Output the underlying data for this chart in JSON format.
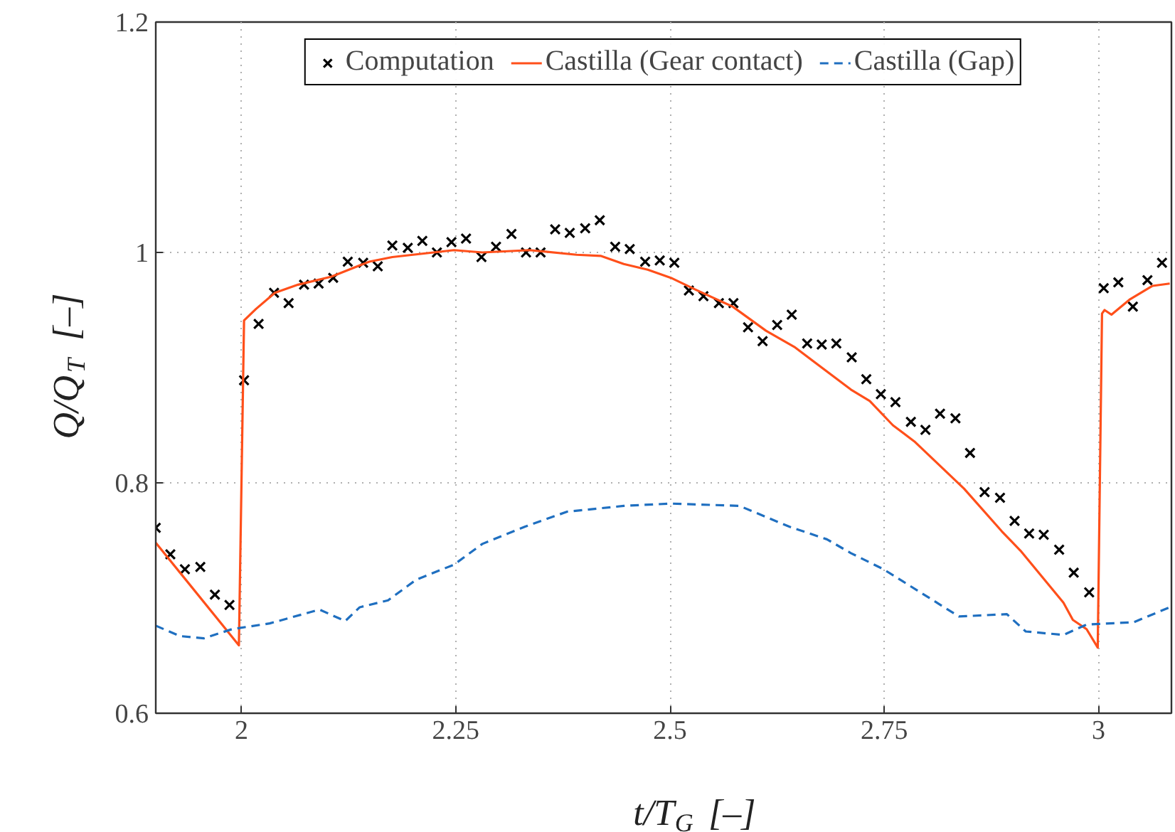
{
  "chart_data": {
    "type": "line",
    "xlabel": "t/T$_{G}$ [–]",
    "ylabel": "Q/Q$_{T}$ [–]",
    "xlim": [
      1.9,
      3.085
    ],
    "ylim": [
      0.6,
      1.2
    ],
    "xticks": [
      2,
      2.25,
      2.5,
      2.75,
      3
    ],
    "yticks": [
      0.6,
      0.8,
      1,
      1.2
    ],
    "grid": true,
    "legend": "top",
    "series": [
      {
        "name": "Computation",
        "type": "scatter",
        "marker": "cross",
        "color": "#000000",
        "x": [
          1.9,
          1.917,
          1.934,
          1.952,
          1.969,
          1.986,
          2.003,
          2.02,
          2.038,
          2.055,
          2.073,
          2.09,
          2.107,
          2.124,
          2.142,
          2.159,
          2.176,
          2.194,
          2.211,
          2.228,
          2.245,
          2.262,
          2.28,
          2.297,
          2.315,
          2.332,
          2.349,
          2.366,
          2.383,
          2.401,
          2.418,
          2.436,
          2.453,
          2.471,
          2.488,
          2.505,
          2.522,
          2.539,
          2.557,
          2.574,
          2.591,
          2.608,
          2.625,
          2.642,
          2.66,
          2.677,
          2.694,
          2.712,
          2.729,
          2.746,
          2.763,
          2.781,
          2.798,
          2.815,
          2.833,
          2.85,
          2.867,
          2.885,
          2.902,
          2.919,
          2.936,
          2.954,
          2.971,
          2.989,
          3.006,
          3.023,
          3.04,
          3.057,
          3.074
        ],
        "values": [
          0.761,
          0.738,
          0.725,
          0.727,
          0.703,
          0.694,
          0.889,
          0.938,
          0.965,
          0.956,
          0.972,
          0.973,
          0.978,
          0.992,
          0.991,
          0.988,
          1.006,
          1.004,
          1.01,
          1.0,
          1.009,
          1.012,
          0.996,
          1.005,
          1.016,
          1.0,
          1.0,
          1.02,
          1.017,
          1.021,
          1.028,
          1.005,
          1.003,
          0.992,
          0.993,
          0.991,
          0.967,
          0.962,
          0.956,
          0.956,
          0.935,
          0.923,
          0.937,
          0.946,
          0.921,
          0.92,
          0.921,
          0.909,
          0.89,
          0.877,
          0.87,
          0.853,
          0.846,
          0.86,
          0.856,
          0.826,
          0.792,
          0.787,
          0.767,
          0.756,
          0.755,
          0.742,
          0.722,
          0.705,
          0.969,
          0.974,
          0.953,
          0.976,
          0.991
        ]
      },
      {
        "name": "Castilla (Gear contact)",
        "color": "#ff4f1a",
        "line_style": "solid",
        "x": [
          1.9,
          1.997,
          2.003,
          2.017,
          2.039,
          2.066,
          2.105,
          2.149,
          2.176,
          2.248,
          2.281,
          2.336,
          2.391,
          2.419,
          2.446,
          2.474,
          2.501,
          2.529,
          2.573,
          2.612,
          2.645,
          2.711,
          2.733,
          2.76,
          2.785,
          2.843,
          2.887,
          2.909,
          2.959,
          2.97,
          2.986,
          2.999,
          3.004,
          3.007,
          3.015,
          3.036,
          3.063,
          3.083
        ],
        "values": [
          0.748,
          0.659,
          0.941,
          0.951,
          0.965,
          0.972,
          0.979,
          0.992,
          0.996,
          1.002,
          1.0,
          1.002,
          0.998,
          0.997,
          0.99,
          0.985,
          0.978,
          0.968,
          0.953,
          0.932,
          0.918,
          0.881,
          0.871,
          0.85,
          0.836,
          0.795,
          0.758,
          0.741,
          0.696,
          0.681,
          0.673,
          0.657,
          0.947,
          0.95,
          0.946,
          0.959,
          0.971,
          0.973
        ]
      },
      {
        "name": "Castilla (Gap)",
        "color": "#1f6fc0",
        "line_style": "dashed",
        "x": [
          1.9,
          1.928,
          1.956,
          1.989,
          2.033,
          2.091,
          2.121,
          2.138,
          2.171,
          2.204,
          2.248,
          2.281,
          2.331,
          2.38,
          2.446,
          2.501,
          2.581,
          2.639,
          2.683,
          2.711,
          2.749,
          2.837,
          2.893,
          2.915,
          2.959,
          2.986,
          3.041,
          3.083
        ],
        "values": [
          0.676,
          0.667,
          0.665,
          0.673,
          0.678,
          0.69,
          0.68,
          0.692,
          0.698,
          0.716,
          0.729,
          0.747,
          0.762,
          0.775,
          0.78,
          0.782,
          0.78,
          0.762,
          0.751,
          0.739,
          0.725,
          0.684,
          0.686,
          0.671,
          0.668,
          0.677,
          0.679,
          0.692
        ]
      }
    ]
  }
}
